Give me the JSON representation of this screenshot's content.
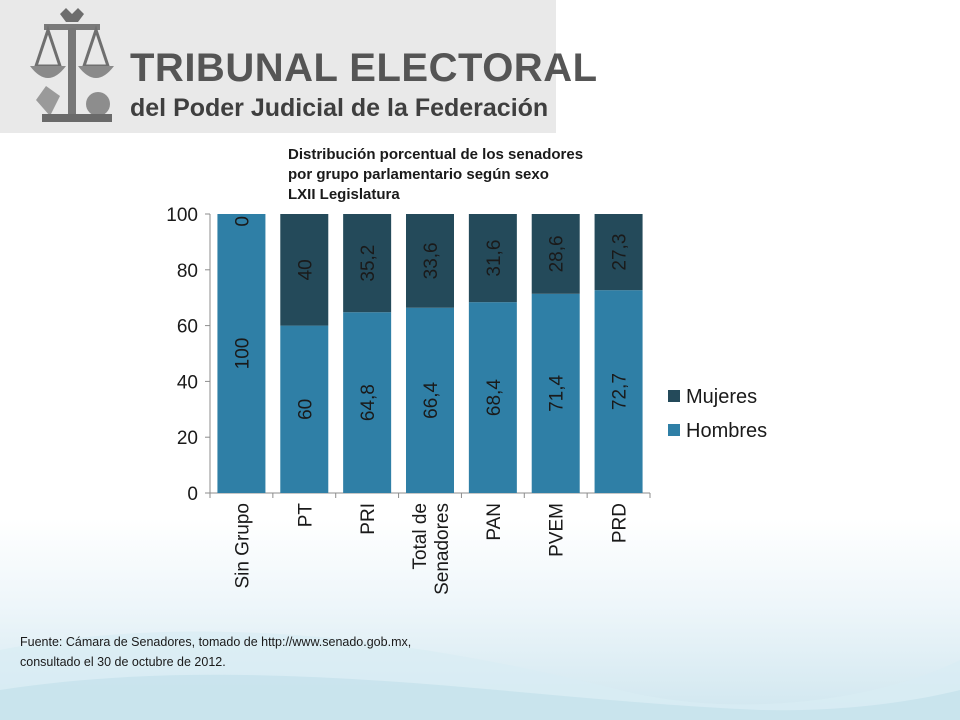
{
  "header": {
    "title_line1": "TRIBUNAL ELECTORAL",
    "title_line2": "del Poder Judicial de la Federación",
    "logo_icon": "scales-of-justice-emblem-icon"
  },
  "chart_data": {
    "type": "bar",
    "stacked": true,
    "title": [
      "Distribución porcentual de los senadores",
      "por grupo parlamentario según sexo",
      "LXII Legislatura"
    ],
    "categories": [
      [
        "Sin Grupo"
      ],
      [
        "PT"
      ],
      [
        "PRI"
      ],
      [
        "Total de",
        "Senadores"
      ],
      [
        "PAN"
      ],
      [
        "PVEM"
      ],
      [
        "PRD"
      ]
    ],
    "series": [
      {
        "name": "Hombres",
        "values": [
          100,
          60,
          64.8,
          66.4,
          68.4,
          71.4,
          72.7
        ],
        "labels": [
          "100",
          "60",
          "64,8",
          "66,4",
          "68,4",
          "71,4",
          "72,7"
        ],
        "color": "#2f7fa6"
      },
      {
        "name": "Mujeres",
        "values": [
          0,
          40,
          35.2,
          33.6,
          31.6,
          28.6,
          27.3
        ],
        "labels": [
          "0",
          "40",
          "35,2",
          "33,6",
          "31,6",
          "28,6",
          "27,3"
        ],
        "color": "#244a5a"
      }
    ],
    "ylim": [
      0,
      100
    ],
    "yticks": [
      "0",
      "20",
      "40",
      "60",
      "80",
      "100"
    ],
    "legend_position": "right",
    "legend_order": [
      "Mujeres",
      "Hombres"
    ],
    "grid": false
  },
  "footer": {
    "source_line1": "Fuente: Cámara de Senadores, tomado de http://www.senado.gob.mx,",
    "source_line2": "consultado el 30 de octubre de 2012."
  }
}
